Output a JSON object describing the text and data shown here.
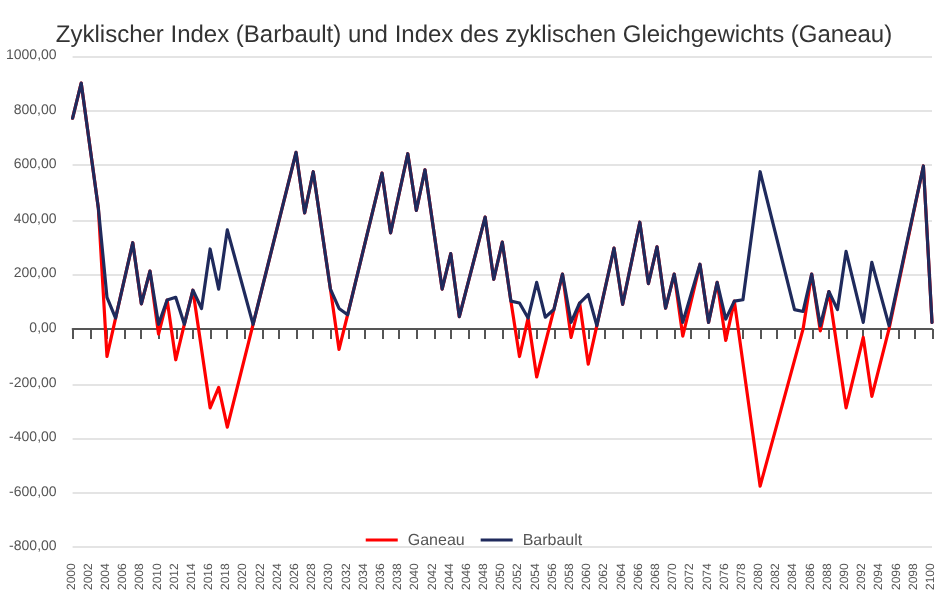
{
  "chart_data": {
    "type": "line",
    "title": "Zyklischer Index (Barbault) und Index des zyklischen Gleichgewichts (Ganeau)",
    "series": [
      {
        "name": "Ganeau",
        "color": "#ff0000",
        "x": [
          2000,
          2001,
          2003,
          2004,
          2005,
          2007,
          2008,
          2009,
          2010,
          2011,
          2012,
          2013,
          2014,
          2016,
          2017,
          2018,
          2021,
          2026,
          2027,
          2028,
          2030,
          2031,
          2032,
          2036,
          2037,
          2039,
          2040,
          2041,
          2043,
          2044,
          2045,
          2048,
          2049,
          2050,
          2051,
          2052,
          2053,
          2054,
          2056,
          2057,
          2058,
          2059,
          2060,
          2061,
          2063,
          2064,
          2066,
          2067,
          2068,
          2069,
          2070,
          2071,
          2073,
          2074,
          2075,
          2076,
          2077,
          2080,
          2085,
          2086,
          2087,
          2088,
          2090,
          2092,
          2093,
          2095,
          2099,
          2100
        ],
        "values": [
          772,
          901,
          441,
          -101,
          40,
          316,
          92,
          212,
          -19,
          106,
          -113,
          17,
          142,
          -289,
          -214,
          -360,
          17,
          647,
          425,
          576,
          146,
          -75,
          52,
          571,
          352,
          642,
          434,
          583,
          146,
          276,
          45,
          410,
          182,
          318,
          102,
          -101,
          40,
          -176,
          71,
          201,
          -31,
          95,
          -129,
          12,
          296,
          90,
          391,
          166,
          301,
          76,
          201,
          -26,
          237,
          24,
          171,
          -42,
          102,
          -576,
          0,
          201,
          -7,
          137,
          -289,
          -31,
          -247,
          0,
          597,
          24
        ]
      },
      {
        "name": "Barbault",
        "color": "#1f2a5c",
        "x": [
          2000,
          2001,
          2003,
          2004,
          2005,
          2007,
          2008,
          2009,
          2010,
          2011,
          2012,
          2013,
          2014,
          2015,
          2016,
          2017,
          2018,
          2021,
          2026,
          2027,
          2028,
          2030,
          2031,
          2032,
          2036,
          2037,
          2039,
          2040,
          2041,
          2043,
          2044,
          2045,
          2048,
          2049,
          2050,
          2051,
          2052,
          2053,
          2054,
          2055,
          2056,
          2057,
          2058,
          2059,
          2060,
          2061,
          2063,
          2064,
          2066,
          2067,
          2068,
          2069,
          2070,
          2071,
          2073,
          2074,
          2075,
          2076,
          2077,
          2078,
          2080,
          2084,
          2085,
          2086,
          2087,
          2088,
          2089,
          2090,
          2092,
          2093,
          2095,
          2099,
          2100
        ],
        "values": [
          772,
          901,
          441,
          116,
          40,
          316,
          92,
          212,
          17,
          106,
          116,
          17,
          142,
          75,
          293,
          146,
          363,
          17,
          647,
          425,
          576,
          146,
          75,
          52,
          571,
          352,
          642,
          434,
          583,
          146,
          276,
          45,
          410,
          182,
          318,
          102,
          95,
          40,
          171,
          43,
          71,
          201,
          24,
          95,
          126,
          12,
          296,
          90,
          391,
          166,
          301,
          76,
          201,
          24,
          237,
          24,
          171,
          36,
          102,
          107,
          576,
          71,
          64,
          201,
          12,
          137,
          71,
          284,
          24,
          244,
          12,
          597,
          24
        ]
      }
    ],
    "xlim": [
      2000,
      2100
    ],
    "xticks": [
      2000,
      2002,
      2004,
      2006,
      2008,
      2010,
      2012,
      2014,
      2016,
      2018,
      2020,
      2022,
      2024,
      2026,
      2028,
      2030,
      2032,
      2034,
      2036,
      2038,
      2040,
      2042,
      2044,
      2046,
      2048,
      2050,
      2052,
      2054,
      2056,
      2058,
      2060,
      2062,
      2064,
      2066,
      2068,
      2070,
      2072,
      2074,
      2076,
      2078,
      2080,
      2082,
      2084,
      2086,
      2088,
      2090,
      2092,
      2094,
      2096,
      2098,
      2100
    ],
    "ylim": [
      -800,
      1000
    ],
    "yticks": [
      {
        "value": -800,
        "label": "-800,00"
      },
      {
        "value": -600,
        "label": "-600,00"
      },
      {
        "value": -400,
        "label": "-400,00"
      },
      {
        "value": -200,
        "label": "-200,00"
      },
      {
        "value": 0,
        "label": "0,00"
      },
      {
        "value": 200,
        "label": "200,00"
      },
      {
        "value": 400,
        "label": "400,00"
      },
      {
        "value": 600,
        "label": "600,00"
      },
      {
        "value": 800,
        "label": "800,00"
      },
      {
        "value": 1000,
        "label": "1000,00"
      }
    ],
    "grid": "y",
    "legend": "bottom",
    "marker": "none",
    "line_style": "solid"
  }
}
